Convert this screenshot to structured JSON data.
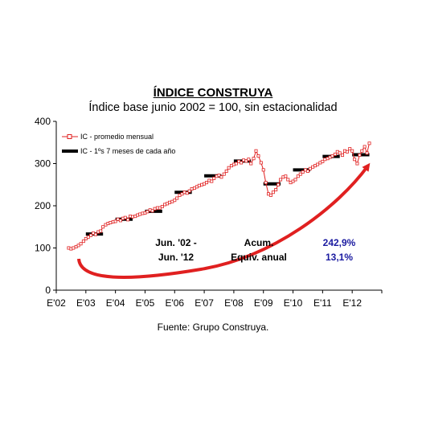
{
  "chart_data": {
    "type": "line",
    "title": "ÍNDICE CONSTRUYA",
    "subtitle": "Índice base junio 2002 = 100, sin estacionalidad",
    "source": "Fuente: Grupo Construya.",
    "x_tick_labels": [
      "E'02",
      "E'03",
      "E'04",
      "E'05",
      "E'06",
      "E'07",
      "E'08",
      "E'09",
      "E'10",
      "E'11",
      "E'12"
    ],
    "y_tick_labels": [
      "0",
      "100",
      "200",
      "300",
      "400"
    ],
    "ylim": [
      0,
      400
    ],
    "xlim": [
      2002.0,
      2013.0
    ],
    "series": [
      {
        "name": "IC - promedio mensual",
        "color": "#e02020",
        "marker": "square-open",
        "x": [
          2002.42,
          2002.5,
          2002.58,
          2002.67,
          2002.75,
          2002.83,
          2002.92,
          2003.0,
          2003.08,
          2003.17,
          2003.25,
          2003.33,
          2003.42,
          2003.5,
          2003.58,
          2003.67,
          2003.75,
          2003.83,
          2003.92,
          2004.0,
          2004.08,
          2004.17,
          2004.25,
          2004.33,
          2004.42,
          2004.5,
          2004.58,
          2004.67,
          2004.75,
          2004.83,
          2004.92,
          2005.0,
          2005.08,
          2005.17,
          2005.25,
          2005.33,
          2005.42,
          2005.5,
          2005.58,
          2005.67,
          2005.75,
          2005.83,
          2005.92,
          2006.0,
          2006.08,
          2006.17,
          2006.25,
          2006.33,
          2006.42,
          2006.5,
          2006.58,
          2006.67,
          2006.75,
          2006.83,
          2006.92,
          2007.0,
          2007.08,
          2007.17,
          2007.25,
          2007.33,
          2007.42,
          2007.5,
          2007.58,
          2007.67,
          2007.75,
          2007.83,
          2007.92,
          2008.0,
          2008.08,
          2008.17,
          2008.25,
          2008.33,
          2008.42,
          2008.5,
          2008.58,
          2008.67,
          2008.75,
          2008.83,
          2008.92,
          2009.0,
          2009.08,
          2009.17,
          2009.25,
          2009.33,
          2009.42,
          2009.5,
          2009.58,
          2009.67,
          2009.75,
          2009.83,
          2009.92,
          2010.0,
          2010.08,
          2010.17,
          2010.25,
          2010.33,
          2010.42,
          2010.5,
          2010.58,
          2010.67,
          2010.75,
          2010.83,
          2010.92,
          2011.0,
          2011.08,
          2011.17,
          2011.25,
          2011.33,
          2011.42,
          2011.5,
          2011.58,
          2011.67,
          2011.75,
          2011.83,
          2011.92,
          2012.0,
          2012.08,
          2012.17,
          2012.25,
          2012.33,
          2012.42,
          2012.5,
          2012.58
        ],
        "values": [
          100,
          98,
          100,
          103,
          106,
          110,
          116,
          122,
          126,
          130,
          135,
          132,
          138,
          140,
          150,
          155,
          158,
          160,
          162,
          163,
          168,
          165,
          170,
          172,
          167,
          175,
          174,
          175,
          178,
          180,
          182,
          183,
          186,
          190,
          188,
          193,
          195,
          195,
          198,
          203,
          205,
          208,
          210,
          213,
          218,
          225,
          228,
          232,
          230,
          235,
          240,
          242,
          245,
          248,
          250,
          252,
          255,
          260,
          258,
          265,
          270,
          272,
          268,
          275,
          282,
          290,
          295,
          298,
          300,
          305,
          302,
          308,
          306,
          310,
          300,
          312,
          330,
          318,
          302,
          285,
          255,
          228,
          225,
          232,
          238,
          250,
          262,
          268,
          270,
          262,
          255,
          258,
          262,
          270,
          275,
          280,
          285,
          282,
          288,
          292,
          295,
          298,
          302,
          305,
          310,
          312,
          315,
          318,
          322,
          328,
          325,
          320,
          330,
          328,
          335,
          330,
          310,
          300,
          320,
          330,
          340,
          325,
          348
        ]
      },
      {
        "name": "IC - 1ºs 7 meses de cada año",
        "color": "#000000",
        "marker": "segment",
        "segments": [
          {
            "x0": 2003.0,
            "x1": 2003.58,
            "value": 133
          },
          {
            "x0": 2004.0,
            "x1": 2004.58,
            "value": 168
          },
          {
            "x0": 2005.0,
            "x1": 2005.58,
            "value": 187
          },
          {
            "x0": 2006.0,
            "x1": 2006.58,
            "value": 232
          },
          {
            "x0": 2007.0,
            "x1": 2007.58,
            "value": 271
          },
          {
            "x0": 2008.0,
            "x1": 2008.58,
            "value": 306
          },
          {
            "x0": 2009.0,
            "x1": 2009.58,
            "value": 252
          },
          {
            "x0": 2010.0,
            "x1": 2010.58,
            "value": 285
          },
          {
            "x0": 2011.0,
            "x1": 2011.58,
            "value": 317
          },
          {
            "x0": 2012.0,
            "x1": 2012.58,
            "value": 321
          }
        ]
      }
    ],
    "annotations": {
      "period_line1": "Jun. '02 -",
      "period_line2": "Jun. '12",
      "label_line1": "Acum.",
      "label_line2": "Equiv. anual",
      "value_line1": "242,9%",
      "value_line2": "13,1%",
      "value_color": "#1a1aa0",
      "arrow_color": "#e02020"
    },
    "legend_placement": "top-left",
    "grid": false
  }
}
